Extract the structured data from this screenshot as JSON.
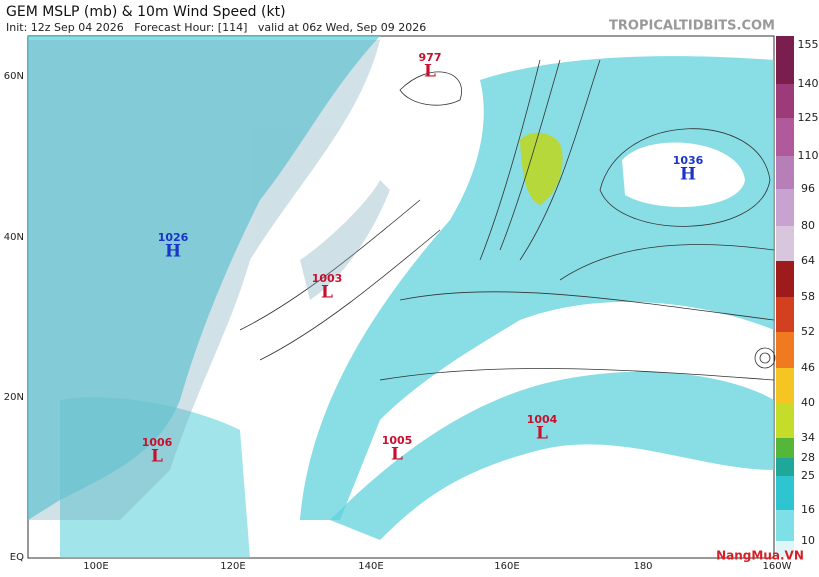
{
  "header": {
    "title": "GEM MSLP (mb) & 10m Wind Speed (kt)",
    "subtitle": "Init: 12z Sep 04 2026   Forecast Hour: [114]   valid at 06z Wed, Sep 09 2026",
    "source": "TROPICALTIDBITS.COM"
  },
  "map": {
    "latitudes": [
      "60N",
      "40N",
      "20N",
      "EQ"
    ],
    "longitudes": [
      "100E",
      "120E",
      "140E",
      "160E",
      "180",
      "160W"
    ],
    "centers": [
      {
        "letter": "L",
        "pressure": "977",
        "color": "#c8102e"
      },
      {
        "letter": "H",
        "pressure": "1026",
        "color": "#1a33c8"
      },
      {
        "letter": "L",
        "pressure": "1003",
        "color": "#c8102e"
      },
      {
        "letter": "H",
        "pressure": "1036",
        "color": "#1a33c8"
      },
      {
        "letter": "L",
        "pressure": "1006",
        "color": "#c8102e"
      },
      {
        "letter": "L",
        "pressure": "1005",
        "color": "#c8102e"
      },
      {
        "letter": "L",
        "pressure": "1004",
        "color": "#c8102e"
      }
    ]
  },
  "legend": {
    "ticks": [
      "155",
      "140",
      "125",
      "110",
      "96",
      "80",
      "64",
      "58",
      "52",
      "46",
      "40",
      "34",
      "28",
      "25",
      "16",
      "10"
    ],
    "colors": [
      "#7a1e4e",
      "#9c3a7a",
      "#b05a9c",
      "#b77fb8",
      "#c8a3cf",
      "#d7c6dc",
      "#9e1b1b",
      "#d2401f",
      "#f07a1f",
      "#f5c623",
      "#c5dc2a",
      "#55b73a",
      "#1fa89a",
      "#2ec4d0",
      "#7fdfe6",
      "#dff6f8"
    ]
  },
  "watermark": "NangMua.VN"
}
